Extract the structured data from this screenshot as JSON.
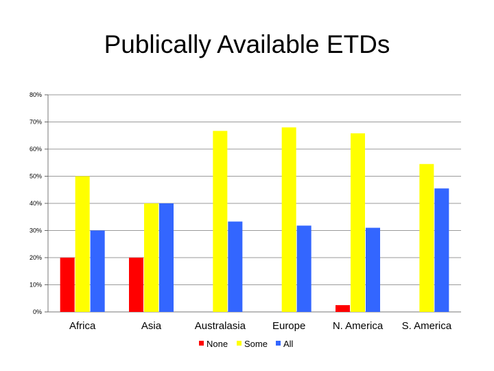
{
  "chart_data": {
    "type": "bar",
    "title": "Publically Available ETDs",
    "categories": [
      "Africa",
      "Asia",
      "Australasia",
      "Europe",
      "N. America",
      "S. America"
    ],
    "series": [
      {
        "name": "None",
        "color": "#ff0000",
        "values": [
          20,
          20,
          0,
          0,
          2.5,
          0
        ]
      },
      {
        "name": "Some",
        "color": "#ffff00",
        "values": [
          50,
          40,
          66.7,
          68,
          65.8,
          54.5
        ]
      },
      {
        "name": "All",
        "color": "#3366ff",
        "values": [
          30,
          40,
          33.3,
          31.8,
          31,
          45.5
        ]
      }
    ],
    "ylim": [
      0,
      80
    ],
    "yticks": [
      0,
      10,
      20,
      30,
      40,
      50,
      60,
      70,
      80
    ],
    "ytick_labels": [
      "0%",
      "10%",
      "20%",
      "30%",
      "40%",
      "50%",
      "60%",
      "70%",
      "80%"
    ],
    "grid": true,
    "legend_position": "bottom",
    "xlabel": "",
    "ylabel": ""
  }
}
